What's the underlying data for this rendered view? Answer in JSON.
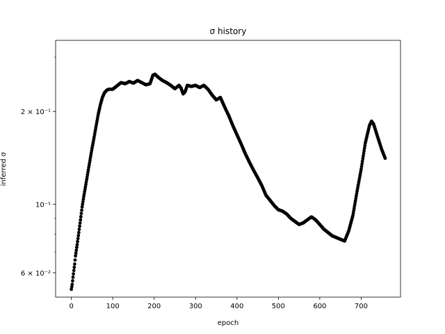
{
  "chart_data": {
    "type": "scatter",
    "title": "σ history",
    "xlabel": "epoch",
    "ylabel": "inferred σ",
    "xlim": [
      -38,
      795
    ],
    "ylim": [
      0.05,
      0.34
    ],
    "yscale": "log",
    "grid": false,
    "marker_color": "#000000",
    "x_ticks": [
      0,
      100,
      200,
      300,
      400,
      500,
      600,
      700
    ],
    "x_tick_labels": [
      "0",
      "100",
      "200",
      "300",
      "400",
      "500",
      "600",
      "700"
    ],
    "y_major_ticks": [
      0.06,
      0.1,
      0.2
    ],
    "y_major_tick_labels": [
      "6 × 10⁻²",
      "10⁻¹",
      "2 × 10⁻¹"
    ],
    "y_minor_ticks": [
      0.07,
      0.08,
      0.09,
      0.3
    ],
    "series": [
      {
        "points": [
          [
            0,
            0.053
          ],
          [
            2,
            0.055
          ],
          [
            4,
            0.058
          ],
          [
            6,
            0.061
          ],
          [
            8,
            0.064
          ],
          [
            10,
            0.068
          ],
          [
            14,
            0.074
          ],
          [
            18,
            0.081
          ],
          [
            22,
            0.089
          ],
          [
            26,
            0.098
          ],
          [
            30,
            0.106
          ],
          [
            35,
            0.116
          ],
          [
            40,
            0.127
          ],
          [
            45,
            0.139
          ],
          [
            50,
            0.152
          ],
          [
            55,
            0.165
          ],
          [
            60,
            0.18
          ],
          [
            65,
            0.196
          ],
          [
            70,
            0.21
          ],
          [
            75,
            0.222
          ],
          [
            80,
            0.23
          ],
          [
            85,
            0.234
          ],
          [
            90,
            0.236
          ],
          [
            100,
            0.236
          ],
          [
            110,
            0.242
          ],
          [
            120,
            0.248
          ],
          [
            130,
            0.246
          ],
          [
            140,
            0.25
          ],
          [
            150,
            0.247
          ],
          [
            160,
            0.252
          ],
          [
            170,
            0.248
          ],
          [
            180,
            0.244
          ],
          [
            190,
            0.246
          ],
          [
            197,
            0.262
          ],
          [
            202,
            0.264
          ],
          [
            210,
            0.258
          ],
          [
            220,
            0.252
          ],
          [
            230,
            0.248
          ],
          [
            240,
            0.243
          ],
          [
            250,
            0.237
          ],
          [
            260,
            0.243
          ],
          [
            265,
            0.238
          ],
          [
            270,
            0.228
          ],
          [
            275,
            0.232
          ],
          [
            280,
            0.243
          ],
          [
            290,
            0.241
          ],
          [
            300,
            0.243
          ],
          [
            310,
            0.239
          ],
          [
            320,
            0.243
          ],
          [
            330,
            0.236
          ],
          [
            340,
            0.226
          ],
          [
            350,
            0.218
          ],
          [
            360,
            0.222
          ],
          [
            370,
            0.207
          ],
          [
            380,
            0.194
          ],
          [
            390,
            0.18
          ],
          [
            400,
            0.168
          ],
          [
            410,
            0.157
          ],
          [
            420,
            0.146
          ],
          [
            430,
            0.137
          ],
          [
            440,
            0.129
          ],
          [
            450,
            0.122
          ],
          [
            460,
            0.115
          ],
          [
            470,
            0.107
          ],
          [
            480,
            0.103
          ],
          [
            490,
            0.099
          ],
          [
            500,
            0.096
          ],
          [
            510,
            0.095
          ],
          [
            520,
            0.093
          ],
          [
            530,
            0.09
          ],
          [
            540,
            0.088
          ],
          [
            550,
            0.086
          ],
          [
            560,
            0.087
          ],
          [
            570,
            0.089
          ],
          [
            580,
            0.091
          ],
          [
            590,
            0.089
          ],
          [
            600,
            0.086
          ],
          [
            610,
            0.083
          ],
          [
            620,
            0.081
          ],
          [
            630,
            0.079
          ],
          [
            640,
            0.078
          ],
          [
            650,
            0.077
          ],
          [
            660,
            0.076
          ],
          [
            670,
            0.082
          ],
          [
            680,
            0.092
          ],
          [
            690,
            0.11
          ],
          [
            700,
            0.13
          ],
          [
            710,
            0.158
          ],
          [
            720,
            0.18
          ],
          [
            725,
            0.186
          ],
          [
            730,
            0.182
          ],
          [
            740,
            0.165
          ],
          [
            750,
            0.15
          ],
          [
            758,
            0.141
          ]
        ]
      }
    ]
  }
}
